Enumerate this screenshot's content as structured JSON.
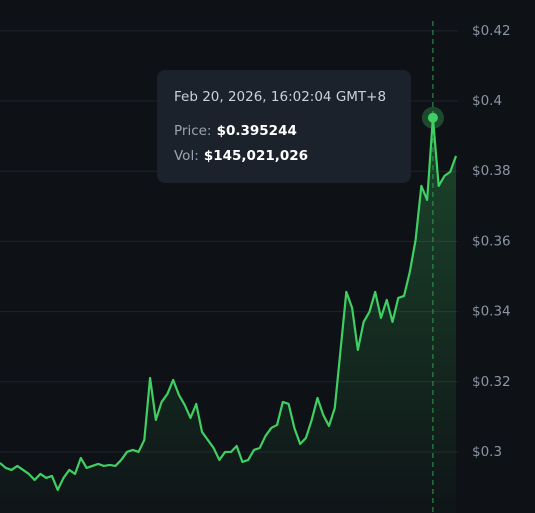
{
  "chart_data": {
    "type": "line",
    "color": "#3fcf63",
    "grid": true,
    "ylim": [
      0.2826,
      0.4288
    ],
    "yticks": [
      {
        "value": 0.3,
        "label": "$0.3"
      },
      {
        "value": 0.32,
        "label": "$0.32"
      },
      {
        "value": 0.34,
        "label": "$0.34"
      },
      {
        "value": 0.36,
        "label": "$0.36"
      },
      {
        "value": 0.38,
        "label": "$0.38"
      },
      {
        "value": 0.4,
        "label": "$0.4"
      },
      {
        "value": 0.42,
        "label": "$0.42"
      }
    ],
    "values": [
      0.29686,
      0.29544,
      0.29487,
      0.29601,
      0.29487,
      0.29373,
      0.29202,
      0.29373,
      0.29259,
      0.29316,
      0.28917,
      0.29259,
      0.29487,
      0.29373,
      0.29829,
      0.29544,
      0.29601,
      0.29658,
      0.29601,
      0.29629,
      0.29601,
      0.29772,
      0.3,
      0.30057,
      0.3,
      0.30342,
      0.32109,
      0.30912,
      0.31425,
      0.31653,
      0.32052,
      0.31625,
      0.3134,
      0.30969,
      0.31368,
      0.3057,
      0.30342,
      0.30114,
      0.29772,
      0.3,
      0.3,
      0.30171,
      0.29715,
      0.29772,
      0.30057,
      0.30114,
      0.30456,
      0.30684,
      0.3077,
      0.31425,
      0.31368,
      0.30684,
      0.30228,
      0.30399,
      0.30912,
      0.31539,
      0.31055,
      0.30741,
      0.31254,
      0.32907,
      0.34561,
      0.34105,
      0.32907,
      0.33706,
      0.33991,
      0.34561,
      0.3382,
      0.34333,
      0.33706,
      0.3439,
      0.34447,
      0.35131,
      0.36043,
      0.37582,
      0.37183,
      0.395244,
      0.37582,
      0.37867,
      0.37981,
      0.38437
    ],
    "tooltip": {
      "title": "Feb 20, 2026, 16:02:04 GMT+8",
      "price_label": "Price:",
      "price": "$0.395244",
      "vol_label": "Vol:",
      "vol": "$145,021,026"
    }
  }
}
